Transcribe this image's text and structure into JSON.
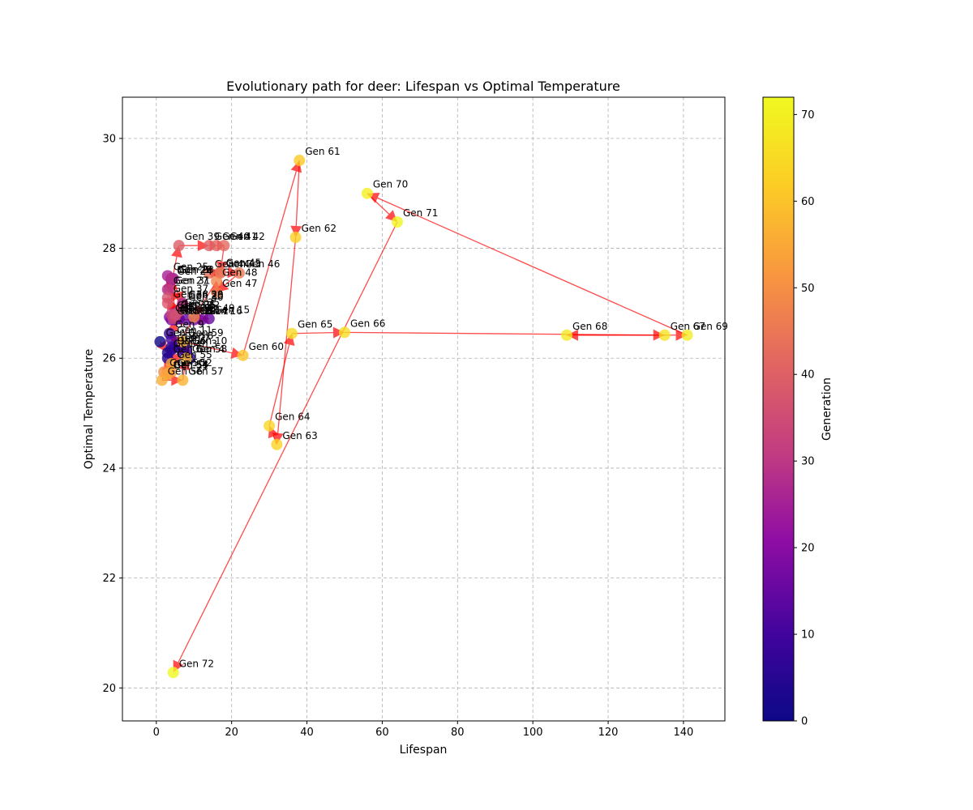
{
  "chart_data": {
    "type": "scatter",
    "title": "Evolutionary path for deer: Lifespan vs Optimal Temperature",
    "xlabel": "Lifespan",
    "ylabel": "Optimal Temperature",
    "xlim": [
      -9,
      151
    ],
    "ylim": [
      19.4,
      30.75
    ],
    "xticks": [
      0,
      20,
      40,
      60,
      80,
      100,
      120,
      140
    ],
    "yticks": [
      20,
      22,
      24,
      26,
      28,
      30
    ],
    "grid": true,
    "colorbar": {
      "label": "Generation",
      "min": 0,
      "max": 72,
      "ticks": [
        0,
        10,
        20,
        30,
        40,
        50,
        60,
        70
      ],
      "colormap": "plasma"
    },
    "arrow_color": "#ff0000",
    "points": [
      {
        "gen": 0,
        "x": 1.0,
        "y": 26.3,
        "label": "Gen 0"
      },
      {
        "gen": 1,
        "x": 3.0,
        "y": 26.1,
        "label": "Gen 1"
      },
      {
        "gen": 2,
        "x": 4.0,
        "y": 26.2,
        "label": "Gen 2"
      },
      {
        "gen": 3,
        "x": 7.0,
        "y": 26.1,
        "label": "Gen 3"
      },
      {
        "gen": 4,
        "x": 9.0,
        "y": 26.0,
        "label": "Gen 4"
      },
      {
        "gen": 5,
        "x": 3.0,
        "y": 26.0,
        "label": "Gen 5"
      },
      {
        "gen": 6,
        "x": 4.0,
        "y": 26.15,
        "label": "Gen 6"
      },
      {
        "gen": 7,
        "x": 5.0,
        "y": 26.2,
        "label": "Gen 7"
      },
      {
        "gen": 8,
        "x": 6.0,
        "y": 26.25,
        "label": "Gen 8"
      },
      {
        "gen": 9,
        "x": 3.5,
        "y": 26.45,
        "label": "Gen 9"
      },
      {
        "gen": 10,
        "x": 8.0,
        "y": 26.15,
        "label": "Gen 10"
      },
      {
        "gen": 11,
        "x": 4.0,
        "y": 26.35,
        "label": "Gen 11"
      },
      {
        "gen": 12,
        "x": 5.0,
        "y": 26.7,
        "label": "Gen 12"
      },
      {
        "gen": 13,
        "x": 6.0,
        "y": 26.72,
        "label": "Gen 13"
      },
      {
        "gen": 14,
        "x": 8.0,
        "y": 26.7,
        "label": "Gen 14"
      },
      {
        "gen": 15,
        "x": 14.0,
        "y": 26.72,
        "label": "Gen 15"
      },
      {
        "gen": 16,
        "x": 12.0,
        "y": 26.7,
        "label": "Gen 16"
      },
      {
        "gen": 17,
        "x": 10.0,
        "y": 26.7,
        "label": "Gen 17"
      },
      {
        "gen": 18,
        "x": 4.0,
        "y": 26.7,
        "label": "Gen 18"
      },
      {
        "gen": 19,
        "x": 3.5,
        "y": 26.75,
        "label": "Gen 19"
      },
      {
        "gen": 20,
        "x": 7.0,
        "y": 26.98,
        "label": "Gen 20"
      },
      {
        "gen": 21,
        "x": 5.0,
        "y": 26.82,
        "label": "Gen 21"
      },
      {
        "gen": 22,
        "x": 4.0,
        "y": 27.45,
        "label": "Gen 22"
      },
      {
        "gen": 23,
        "x": 4.5,
        "y": 27.45,
        "label": "Gen 23"
      },
      {
        "gen": 24,
        "x": 4.0,
        "y": 27.42,
        "label": "Gen 24"
      },
      {
        "gen": 25,
        "x": 3.0,
        "y": 27.5,
        "label": "Gen 25"
      },
      {
        "gen": 26,
        "x": 4.0,
        "y": 27.45,
        "label": "Gen 26"
      },
      {
        "gen": 27,
        "x": 3.0,
        "y": 27.25,
        "label": "Gen 27"
      },
      {
        "gen": 28,
        "x": 4.0,
        "y": 27.45,
        "label": "Gen 28"
      },
      {
        "gen": 29,
        "x": 7.0,
        "y": 27.0,
        "label": "Gen 29"
      },
      {
        "gen": 30,
        "x": 7.0,
        "y": 26.95,
        "label": "Gen 30"
      },
      {
        "gen": 31,
        "x": 3.5,
        "y": 27.25,
        "label": "Gen 31"
      },
      {
        "gen": 32,
        "x": 5.0,
        "y": 26.75,
        "label": "Gen 32"
      },
      {
        "gen": 33,
        "x": 4.0,
        "y": 26.8,
        "label": "Gen 33"
      },
      {
        "gen": 34,
        "x": 4.5,
        "y": 26.72,
        "label": "Gen 34"
      },
      {
        "gen": 35,
        "x": 6.0,
        "y": 26.85,
        "label": "Gen 35"
      },
      {
        "gen": 36,
        "x": 5.0,
        "y": 26.8,
        "label": "Gen 36"
      },
      {
        "gen": 37,
        "x": 3.0,
        "y": 27.1,
        "label": "Gen 37"
      },
      {
        "gen": 38,
        "x": 3.0,
        "y": 27.0,
        "label": "Gen 38"
      },
      {
        "gen": 39,
        "x": 6.0,
        "y": 28.05,
        "label": "Gen 39"
      },
      {
        "gen": 40,
        "x": 14.0,
        "y": 28.05,
        "label": "Gen 40"
      },
      {
        "gen": 41,
        "x": 16.0,
        "y": 28.05,
        "label": "Gen 41"
      },
      {
        "gen": 42,
        "x": 18.0,
        "y": 28.05,
        "label": "Gen 42"
      },
      {
        "gen": 43,
        "x": 17.0,
        "y": 27.55,
        "label": "Gen 43"
      },
      {
        "gen": 44,
        "x": 14.0,
        "y": 27.55,
        "label": "Gen 44"
      },
      {
        "gen": 45,
        "x": 17.0,
        "y": 27.57,
        "label": "Gen 45"
      },
      {
        "gen": 46,
        "x": 22.0,
        "y": 27.55,
        "label": "Gen 46"
      },
      {
        "gen": 47,
        "x": 16.0,
        "y": 27.2,
        "label": "Gen 47"
      },
      {
        "gen": 48,
        "x": 16.0,
        "y": 27.4,
        "label": "Gen 48"
      },
      {
        "gen": 49,
        "x": 10.0,
        "y": 26.75,
        "label": "Gen 49"
      },
      {
        "gen": 50,
        "x": 2.0,
        "y": 25.75,
        "label": "Gen 50"
      },
      {
        "gen": 51,
        "x": 3.0,
        "y": 25.7,
        "label": "Gen 51"
      },
      {
        "gen": 52,
        "x": 4.0,
        "y": 25.75,
        "label": "Gen 52"
      },
      {
        "gen": 53,
        "x": 3.0,
        "y": 25.72,
        "label": "Gen 53"
      },
      {
        "gen": 54,
        "x": 3.0,
        "y": 25.72,
        "label": "Gen 54"
      },
      {
        "gen": 55,
        "x": 4.0,
        "y": 25.9,
        "label": "Gen 55"
      },
      {
        "gen": 56,
        "x": 1.5,
        "y": 25.6,
        "label": "Gen 56"
      },
      {
        "gen": 57,
        "x": 7.0,
        "y": 25.6,
        "label": "Gen 57"
      },
      {
        "gen": 58,
        "x": 8.0,
        "y": 26.0,
        "label": "Gen 58"
      },
      {
        "gen": 59,
        "x": 7.0,
        "y": 26.3,
        "label": "Gen 59"
      },
      {
        "gen": 60,
        "x": 23.0,
        "y": 26.05,
        "label": "Gen 60"
      },
      {
        "gen": 61,
        "x": 38.0,
        "y": 29.6,
        "label": "Gen 61"
      },
      {
        "gen": 62,
        "x": 37.0,
        "y": 28.2,
        "label": "Gen 62"
      },
      {
        "gen": 63,
        "x": 32.0,
        "y": 24.43,
        "label": "Gen 63"
      },
      {
        "gen": 64,
        "x": 30.0,
        "y": 24.77,
        "label": "Gen 64"
      },
      {
        "gen": 65,
        "x": 36.0,
        "y": 26.45,
        "label": "Gen 65"
      },
      {
        "gen": 66,
        "x": 50.0,
        "y": 26.47,
        "label": "Gen 66"
      },
      {
        "gen": 67,
        "x": 135.0,
        "y": 26.42,
        "label": "Gen 67"
      },
      {
        "gen": 68,
        "x": 109.0,
        "y": 26.42,
        "label": "Gen 68"
      },
      {
        "gen": 69,
        "x": 141.0,
        "y": 26.42,
        "label": "Gen 69"
      },
      {
        "gen": 70,
        "x": 56.0,
        "y": 29.0,
        "label": "Gen 70"
      },
      {
        "gen": 71,
        "x": 64.0,
        "y": 28.48,
        "label": "Gen 71"
      },
      {
        "gen": 72,
        "x": 4.5,
        "y": 20.28,
        "label": "Gen 72"
      }
    ]
  }
}
